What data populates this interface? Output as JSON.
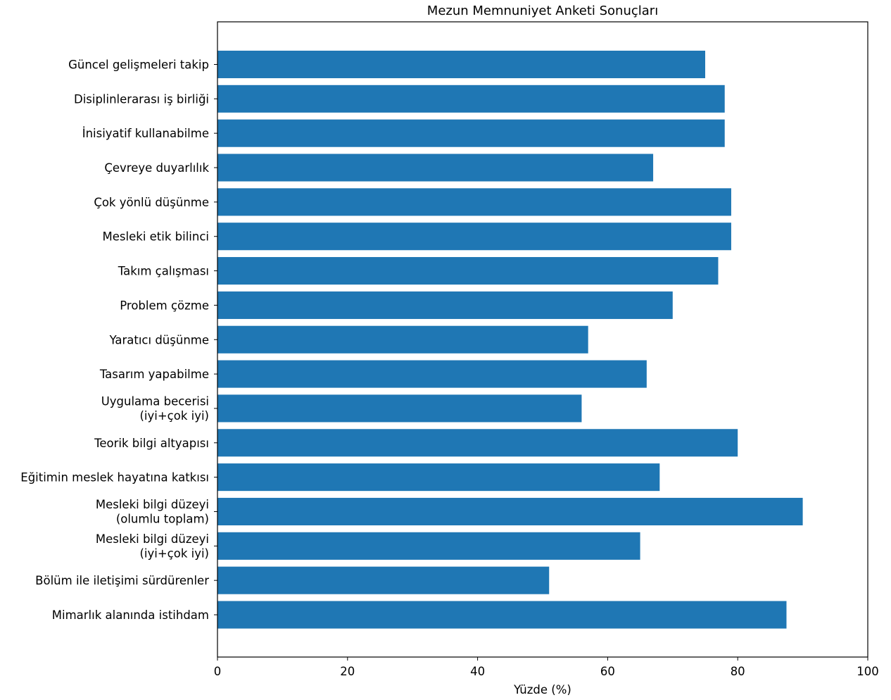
{
  "chart_data": {
    "type": "bar",
    "orientation": "horizontal",
    "title": "Mezun Memnuniyet Anketi Sonuçları",
    "xlabel": "Yüzde (%)",
    "ylabel": "",
    "xlim": [
      0,
      100
    ],
    "xticks": [
      "0",
      "20",
      "40",
      "60",
      "80",
      "100"
    ],
    "bar_color": "#1f77b4",
    "grid": false,
    "categories": [
      [
        "Güncel gelişmeleri takip"
      ],
      [
        "Disiplinlerarası iş birliği"
      ],
      [
        "İnisiyatif kullanabilme"
      ],
      [
        "Çevreye duyarlılık"
      ],
      [
        "Çok yönlü düşünme"
      ],
      [
        "Mesleki etik bilinci"
      ],
      [
        "Takım çalışması"
      ],
      [
        "Problem çözme"
      ],
      [
        "Yaratıcı düşünme"
      ],
      [
        "Tasarım yapabilme"
      ],
      [
        "Uygulama becerisi",
        "(iyi+çok iyi)"
      ],
      [
        "Teorik bilgi altyapısı"
      ],
      [
        "Eğitimin meslek hayatına katkısı"
      ],
      [
        "Mesleki bilgi düzeyi",
        "(olumlu toplam)"
      ],
      [
        "Mesleki bilgi düzeyi",
        "(iyi+çok iyi)"
      ],
      [
        "Bölüm ile iletişimi sürdürenler"
      ],
      [
        "Mimarlık alanında istihdam"
      ]
    ],
    "values": [
      75,
      78,
      78,
      67,
      79,
      79,
      77,
      70,
      57,
      66,
      56,
      80,
      68,
      90,
      65,
      51,
      87.5
    ]
  }
}
